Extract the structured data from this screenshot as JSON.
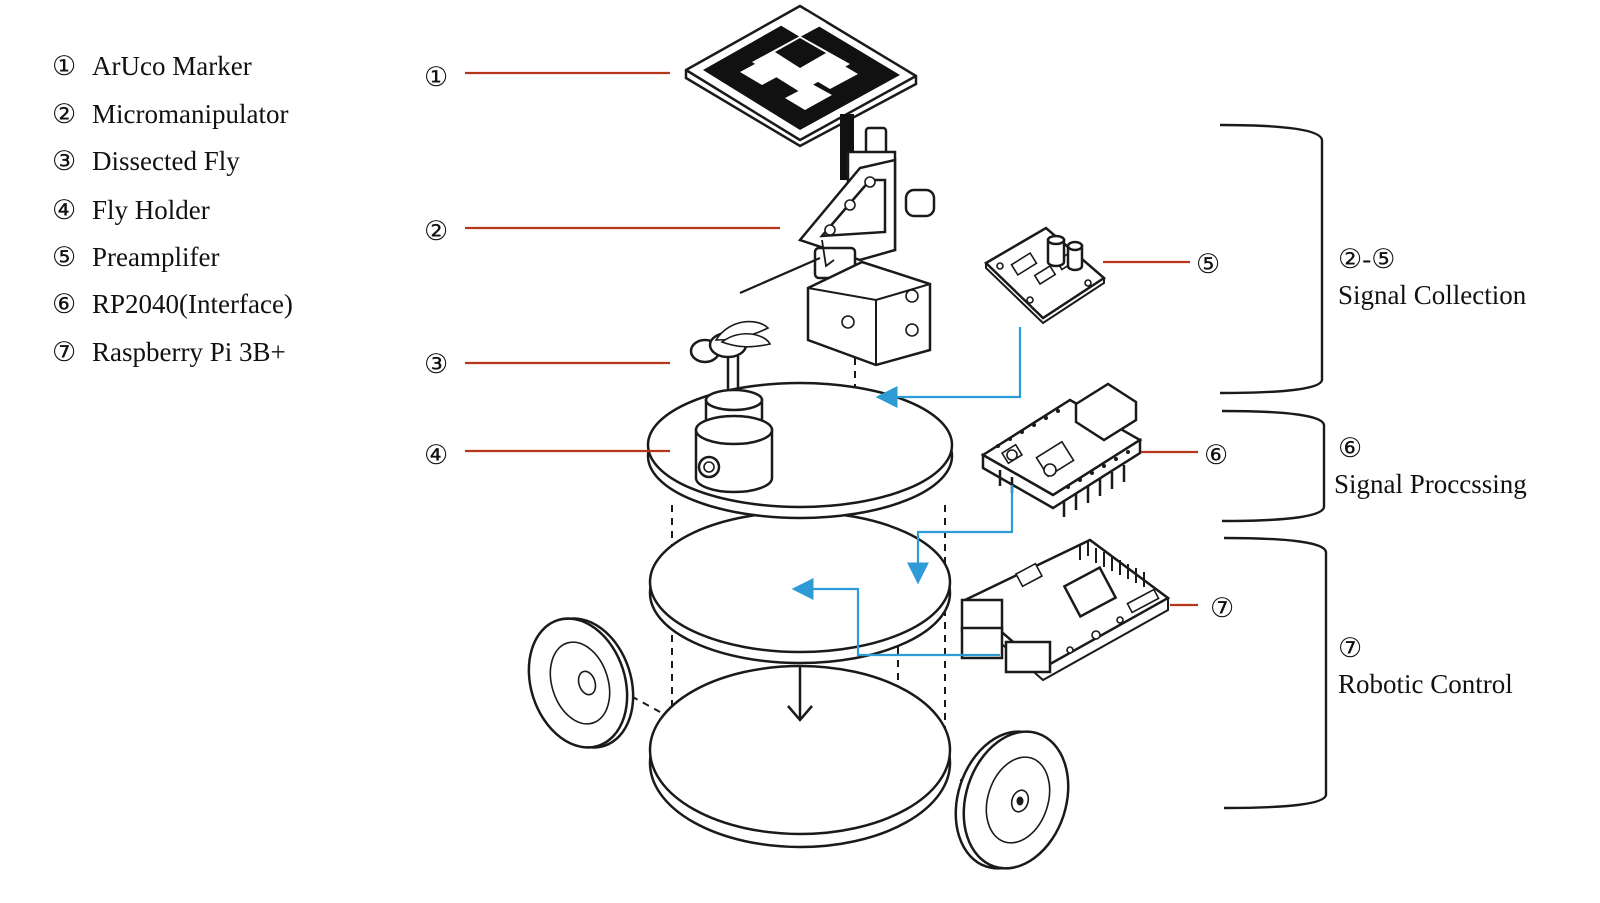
{
  "legend": [
    {
      "num": "①",
      "label": "ArUco Marker"
    },
    {
      "num": "②",
      "label": "Micromanipulator"
    },
    {
      "num": "③",
      "label": "Dissected Fly"
    },
    {
      "num": "④",
      "label": "Fly Holder"
    },
    {
      "num": "⑤",
      "label": "Preamplifer"
    },
    {
      "num": "⑥",
      "label": "RP2040(Interface)"
    },
    {
      "num": "⑦",
      "label": "Raspberry Pi 3B+"
    }
  ],
  "callouts": [
    "①",
    "②",
    "③",
    "④",
    "⑤",
    "⑥",
    "⑦"
  ],
  "groups": [
    {
      "num": "②-⑤",
      "label": "Signal Collection"
    },
    {
      "num": "⑥",
      "label": "Signal Proccssing"
    },
    {
      "num": "⑦",
      "label": "Robotic Control"
    }
  ],
  "colors": {
    "leader": "#b5361c",
    "flow": "#2e9ad6",
    "ink": "#1a1a1a"
  }
}
